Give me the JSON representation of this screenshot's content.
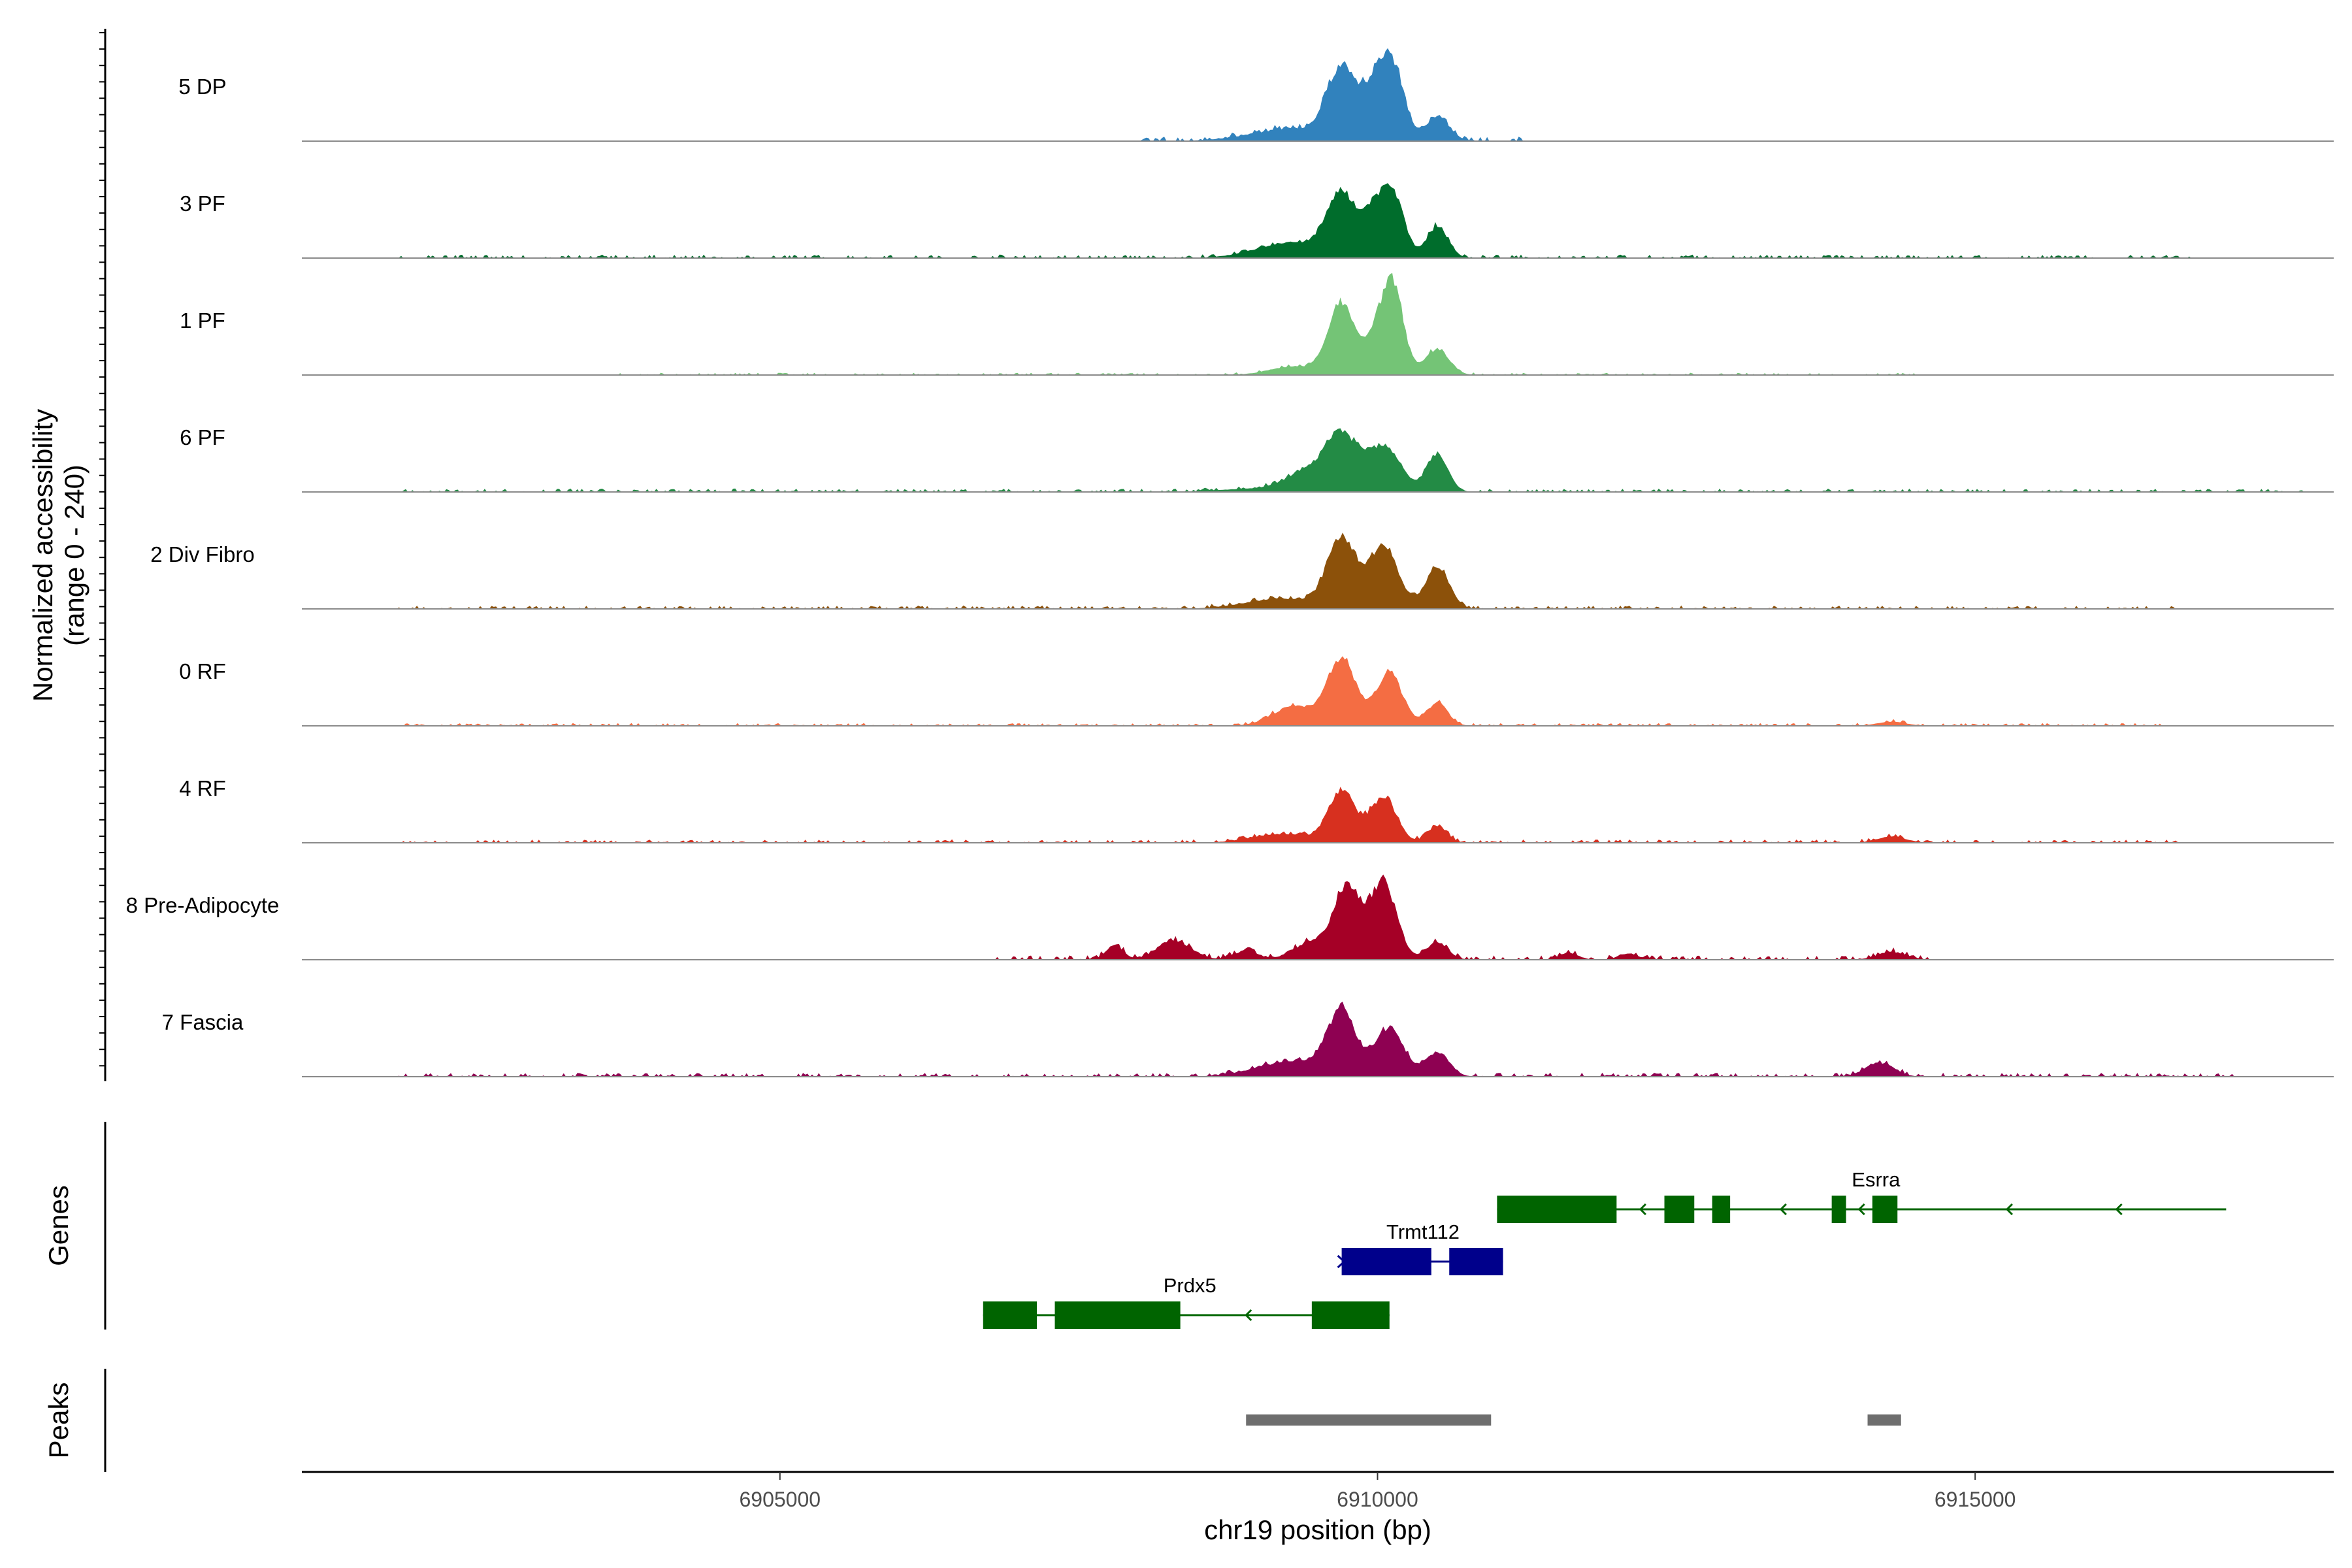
{
  "chart_data": {
    "type": "area",
    "title": "",
    "chromosome": "chr19",
    "xlabel": "chr19 position (bp)",
    "ylabel_line1": "Normalized accessibility",
    "ylabel_line2": "(range 0 - 240)",
    "xlim": [
      6901000,
      6918000
    ],
    "ylim": [
      0,
      240
    ],
    "xticks": [
      6905000,
      6910000,
      6915000
    ],
    "xtick_labels": [
      "6905000",
      "6910000",
      "6915000"
    ],
    "genes_label": "Genes",
    "peaks_label": "Peaks",
    "tracks": [
      {
        "name": "5 DP",
        "color": "#3182BD",
        "peaks": [
          [
            6909300,
            35,
            350
          ],
          [
            6909700,
            200,
            120
          ],
          [
            6910000,
            170,
            110
          ],
          [
            6910150,
            150,
            90
          ],
          [
            6910500,
            70,
            100
          ]
        ],
        "noise": [
          [
            6908000,
            6911200,
            8
          ]
        ]
      },
      {
        "name": "3 PF",
        "color": "#006D2C",
        "peaks": [
          [
            6909300,
            45,
            300
          ],
          [
            6909700,
            170,
            120
          ],
          [
            6910000,
            140,
            110
          ],
          [
            6910150,
            130,
            90
          ],
          [
            6910500,
            90,
            90
          ]
        ],
        "noise": [
          [
            6901800,
            6916800,
            6
          ]
        ]
      },
      {
        "name": "1 PF",
        "color": "#74C476",
        "peaks": [
          [
            6909300,
            25,
            200
          ],
          [
            6909700,
            205,
            110
          ],
          [
            6910050,
            170,
            110
          ],
          [
            6910150,
            150,
            80
          ],
          [
            6910500,
            75,
            100
          ]
        ],
        "noise": [
          [
            6903500,
            6914500,
            4
          ]
        ]
      },
      {
        "name": "6 PF",
        "color": "#238B45",
        "peaks": [
          [
            6909000,
            10,
            300
          ],
          [
            6909400,
            55,
            160
          ],
          [
            6909700,
            160,
            130
          ],
          [
            6910050,
            130,
            140
          ],
          [
            6910500,
            110,
            90
          ]
        ],
        "noise": [
          [
            6901800,
            6917800,
            6
          ]
        ]
      },
      {
        "name": "2 Div Fibro",
        "color": "#8C510A",
        "peaks": [
          [
            6909200,
            30,
            300
          ],
          [
            6909700,
            200,
            120
          ],
          [
            6910050,
            180,
            120
          ],
          [
            6910500,
            120,
            100
          ]
        ],
        "noise": [
          [
            6901800,
            6916700,
            6
          ]
        ]
      },
      {
        "name": "0 RF",
        "color": "#F46D43",
        "peaks": [
          [
            6909300,
            55,
            180
          ],
          [
            6909700,
            190,
            120
          ],
          [
            6910100,
            150,
            110
          ],
          [
            6910500,
            65,
            90
          ],
          [
            6914300,
            12,
            120
          ]
        ],
        "noise": [
          [
            6901800,
            6916700,
            5
          ]
        ]
      },
      {
        "name": "4 RF",
        "color": "#D7301F",
        "peaks": [
          [
            6909200,
            25,
            250
          ],
          [
            6909700,
            150,
            110
          ],
          [
            6910050,
            130,
            110
          ],
          [
            6910500,
            50,
            80
          ],
          [
            6914300,
            18,
            120
          ]
        ],
        "noise": [
          [
            6901800,
            6916700,
            6
          ]
        ]
      },
      {
        "name": "8 Pre-Adipocyte",
        "color": "#A50026",
        "peaks": [
          [
            6907800,
            42,
            70
          ],
          [
            6908300,
            55,
            140
          ],
          [
            6908900,
            25,
            100
          ],
          [
            6909450,
            50,
            150
          ],
          [
            6909750,
            210,
            110
          ],
          [
            6910050,
            220,
            110
          ],
          [
            6910500,
            50,
            90
          ],
          [
            6911600,
            20,
            80
          ],
          [
            6912100,
            18,
            80
          ],
          [
            6914300,
            22,
            120
          ]
        ],
        "noise": [
          [
            6906800,
            6914600,
            8
          ]
        ]
      },
      {
        "name": "7 Fascia",
        "color": "#8E0152",
        "peaks": [
          [
            6909300,
            45,
            300
          ],
          [
            6909700,
            175,
            120
          ],
          [
            6910100,
            140,
            120
          ],
          [
            6910500,
            70,
            100
          ],
          [
            6914200,
            40,
            120
          ]
        ],
        "noise": [
          [
            6901800,
            6917200,
            7
          ]
        ]
      }
    ],
    "genes": [
      {
        "name": "Esrra",
        "row": 1,
        "color": "#006400",
        "start": 6911000,
        "end": 6917100,
        "exons": [
          [
            6911000,
            6912000
          ],
          [
            6912400,
            6912650
          ],
          [
            6912800,
            6912950
          ],
          [
            6913800,
            6913920
          ],
          [
            6914140,
            6914350
          ]
        ],
        "strand": "-"
      },
      {
        "name": "Trmt112",
        "row": 2,
        "color": "#00008B",
        "start": 6909700,
        "end": 6911050,
        "exons": [
          [
            6909700,
            6910450
          ],
          [
            6910600,
            6911050
          ]
        ],
        "strand": "+"
      },
      {
        "name": "Prdx5",
        "row": 3,
        "color": "#006400",
        "start": 6906700,
        "end": 6910100,
        "exons": [
          [
            6906700,
            6907150
          ],
          [
            6907300,
            6908350
          ],
          [
            6909450,
            6910100
          ]
        ],
        "strand": "-"
      }
    ],
    "peak_regions": [
      [
        6908900,
        6910950
      ],
      [
        6914100,
        6914380
      ]
    ]
  }
}
